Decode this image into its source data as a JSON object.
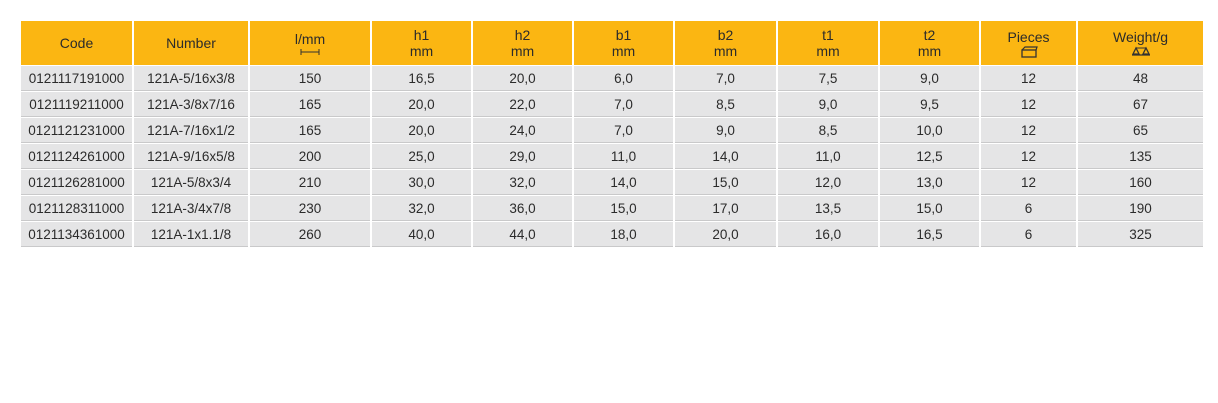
{
  "table": {
    "header": [
      [
        "Code"
      ],
      [
        "Number"
      ],
      [
        "l/mm"
      ],
      [
        "h1",
        "mm"
      ],
      [
        "h2",
        "mm"
      ],
      [
        "b1",
        "mm"
      ],
      [
        "b2",
        "mm"
      ],
      [
        "t1",
        "mm"
      ],
      [
        "t2",
        "mm"
      ],
      [
        "Pieces"
      ],
      [
        "Weight/g"
      ]
    ],
    "rows": [
      [
        "0121117191000",
        "121A-5/16x3/8",
        "150",
        "16,5",
        "20,0",
        "6,0",
        "7,0",
        "7,5",
        "9,0",
        "12",
        "48"
      ],
      [
        "0121119211000",
        "121A-3/8x7/16",
        "165",
        "20,0",
        "22,0",
        "7,0",
        "8,5",
        "9,0",
        "9,5",
        "12",
        "67"
      ],
      [
        "0121121231000",
        "121A-7/16x1/2",
        "165",
        "20,0",
        "24,0",
        "7,0",
        "9,0",
        "8,5",
        "10,0",
        "12",
        "65"
      ],
      [
        "0121124261000",
        "121A-9/16x5/8",
        "200",
        "25,0",
        "29,0",
        "11,0",
        "14,0",
        "11,0",
        "12,5",
        "12",
        "135"
      ],
      [
        "0121126281000",
        "121A-5/8x3/4",
        "210",
        "30,0",
        "32,0",
        "14,0",
        "15,0",
        "12,0",
        "13,0",
        "12",
        "160"
      ],
      [
        "0121128311000",
        "121A-3/4x7/8",
        "230",
        "32,0",
        "36,0",
        "15,0",
        "17,0",
        "13,5",
        "15,0",
        "6",
        "190"
      ],
      [
        "0121134361000",
        "121A-1x1.1/8",
        "260",
        "40,0",
        "44,0",
        "18,0",
        "20,0",
        "16,0",
        "16,5",
        "6",
        "325"
      ]
    ]
  }
}
